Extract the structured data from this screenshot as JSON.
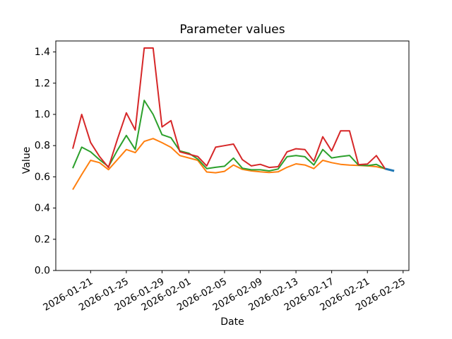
{
  "figure": {
    "background": "#ffffff"
  },
  "chart_data": {
    "type": "line",
    "title": "Parameter values",
    "xlabel": "Date",
    "ylabel": "Value",
    "grid": false,
    "legend": "none",
    "ylim": [
      0,
      1.4704
    ],
    "xlim_days": [
      -1.9,
      37.65
    ],
    "y_ticks": [
      0.0,
      0.2,
      0.4,
      0.6,
      0.8,
      1.0,
      1.2,
      1.4
    ],
    "y_tick_labels": [
      "0.0",
      "0.2",
      "0.4",
      "0.6",
      "0.8",
      "1.0",
      "1.2",
      "1.4"
    ],
    "x_tick_dates": [
      "2026-01-21",
      "2026-01-25",
      "2026-01-29",
      "2026-02-01",
      "2026-02-05",
      "2026-02-09",
      "2026-02-13",
      "2026-02-17",
      "2026-02-21",
      "2026-02-25"
    ],
    "x_tick_rotation_deg": 30,
    "dates": [
      "2026-01-19",
      "2026-01-20",
      "2026-01-21",
      "2026-01-22",
      "2026-01-23",
      "2026-01-24",
      "2026-01-25",
      "2026-01-26",
      "2026-01-27",
      "2026-01-28",
      "2026-01-29",
      "2026-01-30",
      "2026-01-31",
      "2026-02-01",
      "2026-02-02",
      "2026-02-03",
      "2026-02-04",
      "2026-02-05",
      "2026-02-06",
      "2026-02-07",
      "2026-02-08",
      "2026-02-09",
      "2026-02-10",
      "2026-02-11",
      "2026-02-12",
      "2026-02-13",
      "2026-02-14",
      "2026-02-15",
      "2026-02-16",
      "2026-02-17",
      "2026-02-18",
      "2026-02-19",
      "2026-02-20",
      "2026-02-21",
      "2026-02-22",
      "2026-02-23"
    ],
    "series": [
      {
        "name": "series-orange",
        "color": "#ff7f0e",
        "linewidth": 2,
        "values": [
          0.518,
          0.615,
          0.706,
          0.691,
          0.646,
          0.71,
          0.775,
          0.755,
          0.827,
          0.845,
          0.819,
          0.789,
          0.736,
          0.721,
          0.706,
          0.631,
          0.626,
          0.635,
          0.676,
          0.648,
          0.638,
          0.632,
          0.628,
          0.632,
          0.661,
          0.683,
          0.676,
          0.653,
          0.706,
          0.691,
          0.68,
          0.675,
          0.673,
          0.67,
          0.665,
          0.652
        ]
      },
      {
        "name": "series-green",
        "color": "#2ca02c",
        "linewidth": 2,
        "values": [
          0.655,
          0.79,
          0.76,
          0.71,
          0.665,
          0.77,
          0.865,
          0.775,
          1.09,
          1.0,
          0.87,
          0.85,
          0.766,
          0.751,
          0.714,
          0.653,
          0.661,
          0.668,
          0.72,
          0.655,
          0.645,
          0.645,
          0.638,
          0.65,
          0.729,
          0.736,
          0.729,
          0.676,
          0.775,
          0.721,
          0.73,
          0.737,
          0.675,
          0.672,
          0.68,
          0.65
        ]
      },
      {
        "name": "series-red",
        "color": "#d62728",
        "linewidth": 2,
        "values": [
          0.78,
          1.0,
          0.82,
          0.73,
          0.66,
          0.84,
          1.01,
          0.9,
          1.425,
          1.425,
          0.92,
          0.96,
          0.76,
          0.745,
          0.73,
          0.67,
          0.79,
          0.8,
          0.81,
          0.71,
          0.67,
          0.68,
          0.66,
          0.665,
          0.76,
          0.78,
          0.775,
          0.7,
          0.857,
          0.766,
          0.895,
          0.895,
          0.678,
          0.682,
          0.736,
          0.65
        ]
      },
      {
        "name": "series-blue",
        "color": "#1f77b4",
        "linewidth": 3,
        "dates": [
          "2026-02-23",
          "2026-02-24"
        ],
        "values": [
          0.652,
          0.638
        ]
      }
    ]
  }
}
